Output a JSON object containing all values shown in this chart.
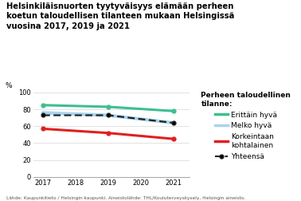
{
  "title": "Helsinkiläisnuorten tyytyväisyys elämään perheen\nkoetun taloudellisen tilanteen mukaan Helsingissä\nvuosina 2017, 2019 ja 2021",
  "footnote": "Lähde: Kaupunkitieto / Helsingin kaupunki. Aineistolähde: THL/Kouluterveyskysely, Helsingin aineisto.",
  "years": [
    2017,
    2019,
    2021
  ],
  "erittain_hyva": [
    85,
    83,
    78
  ],
  "melko_hyva": [
    76,
    73,
    64
  ],
  "korkeintaan": [
    57,
    52,
    45
  ],
  "yhteensa": [
    73,
    73,
    64
  ],
  "colors": {
    "erittain_hyva": "#3dbf8f",
    "melko_hyva": "#a8d4f0",
    "korkeintaan": "#e02020",
    "yhteensa": "#222222"
  },
  "legend_title": "Perheen taloudellinen\ntilanne:",
  "legend_labels": [
    "Erittäin hyvä",
    "Melko hyvä",
    "Korkeintaan\nkohtalainen",
    "Yhteensä"
  ],
  "ylabel": "%",
  "ylim": [
    0,
    100
  ],
  "yticks": [
    0,
    20,
    40,
    60,
    80,
    100
  ],
  "xlim": [
    2016.7,
    2021.5
  ],
  "xticks": [
    2017,
    2018,
    2019,
    2020,
    2021
  ],
  "background_color": "#ffffff"
}
